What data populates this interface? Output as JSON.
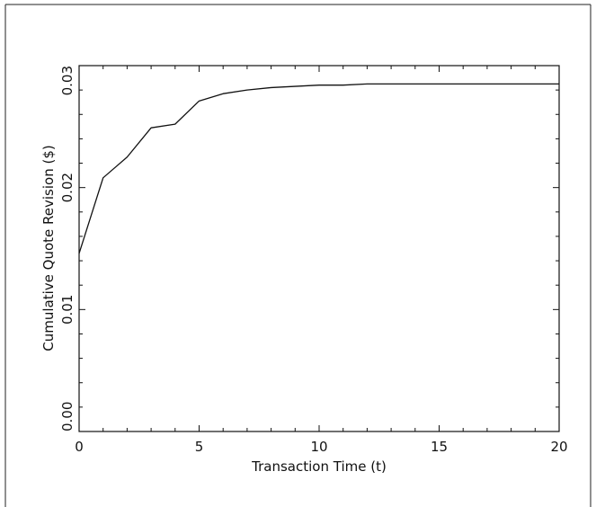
{
  "chart_data": {
    "type": "line",
    "title": "",
    "xlabel": "Transaction Time (t)",
    "ylabel": "Cumulative Quote Revision ($)",
    "xlim": [
      0,
      20
    ],
    "ylim": [
      0,
      0.03
    ],
    "x_ticks": [
      0,
      5,
      10,
      15,
      20
    ],
    "x_tick_labels": [
      "0",
      "5",
      "10",
      "15",
      "20"
    ],
    "y_ticks": [
      0,
      0.01,
      0.02,
      0.03
    ],
    "y_tick_labels": [
      "0.00",
      "0.01",
      "0.02",
      "0.03"
    ],
    "grid": false,
    "series": [
      {
        "x": [
          0,
          1,
          2,
          3,
          4,
          5,
          6,
          7,
          8,
          9,
          10,
          11,
          12,
          13,
          14,
          15,
          16,
          17,
          18,
          19,
          20
        ],
        "values": [
          0.0146,
          0.0208,
          0.0225,
          0.0249,
          0.0252,
          0.0271,
          0.0277,
          0.028,
          0.0282,
          0.0283,
          0.0284,
          0.0284,
          0.0285,
          0.0285,
          0.0285,
          0.0285,
          0.0285,
          0.0285,
          0.0285,
          0.0285,
          0.0285
        ]
      }
    ]
  }
}
